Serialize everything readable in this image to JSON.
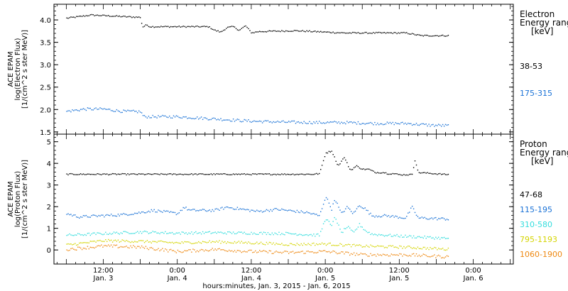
{
  "chart_data": [
    {
      "type": "scatter",
      "ylabel": [
        "ACE EPAM",
        "log(Electron Flux)",
        "[1/(cm^2 s ster MeV)]"
      ],
      "ylim": [
        1.45,
        4.35
      ],
      "yticks": [
        1.5,
        2.0,
        2.5,
        3.0,
        3.5,
        4.0
      ],
      "ytick_labels": [
        "1.5",
        "2.0",
        "2.5",
        "3.0",
        "3.5",
        "4.0"
      ],
      "legend_title": [
        "Electron",
        "Energy ranges",
        "[keV]"
      ],
      "series": [
        {
          "name": "38-53",
          "color": "#000000",
          "anchors": [
            [
              0,
              4.05
            ],
            [
              8,
              4.12
            ],
            [
              20,
              4.08
            ],
            [
              24,
              4.07
            ],
            [
              24.5,
              3.85
            ],
            [
              26,
              3.9
            ],
            [
              27,
              3.86
            ],
            [
              46,
              3.86
            ],
            [
              48,
              3.78
            ],
            [
              50,
              3.74
            ],
            [
              52,
              3.84
            ],
            [
              54,
              3.86
            ],
            [
              56,
              3.78
            ],
            [
              58,
              3.88
            ],
            [
              60,
              3.72
            ],
            [
              62,
              3.75
            ],
            [
              74,
              3.77
            ],
            [
              90,
              3.72
            ],
            [
              110,
              3.72
            ],
            [
              115,
              3.66
            ],
            [
              120,
              3.66
            ],
            [
              124,
              3.66
            ]
          ],
          "noise": 0.015
        },
        {
          "name": "175-315",
          "color": "#1a72d6",
          "anchors": [
            [
              0,
              1.97
            ],
            [
              6,
              2.02
            ],
            [
              12,
              2.02
            ],
            [
              18,
              1.97
            ],
            [
              24,
              1.96
            ],
            [
              25,
              1.85
            ],
            [
              36,
              1.85
            ],
            [
              48,
              1.8
            ],
            [
              60,
              1.75
            ],
            [
              70,
              1.73
            ],
            [
              80,
              1.72
            ],
            [
              90,
              1.72
            ],
            [
              100,
              1.7
            ],
            [
              110,
              1.7
            ],
            [
              118,
              1.66
            ],
            [
              124,
              1.65
            ]
          ],
          "noise": 0.03
        }
      ]
    },
    {
      "type": "scatter",
      "ylabel": [
        "ACE EPAM",
        "log(Proton Flux)",
        "[1/(cm^2 s ster MeV)]"
      ],
      "ylim": [
        -0.65,
        5.35
      ],
      "yticks": [
        0,
        1,
        2,
        3,
        4,
        5
      ],
      "ytick_labels": [
        "0",
        "1",
        "2",
        "3",
        "4",
        "5"
      ],
      "legend_title": [
        "Proton",
        "Energy ranges",
        "[keV]"
      ],
      "series": [
        {
          "name": "47-68",
          "color": "#000000",
          "anchors": [
            [
              0,
              3.52
            ],
            [
              80,
              3.52
            ],
            [
              82,
              3.55
            ],
            [
              84,
              4.5
            ],
            [
              86,
              4.6
            ],
            [
              88,
              3.9
            ],
            [
              90,
              4.3
            ],
            [
              92,
              3.7
            ],
            [
              94,
              3.9
            ],
            [
              96,
              3.75
            ],
            [
              98,
              3.75
            ],
            [
              100,
              3.6
            ],
            [
              103,
              3.6
            ],
            [
              104,
              3.55
            ],
            [
              106,
              3.55
            ],
            [
              108,
              3.5
            ],
            [
              110,
              3.5
            ],
            [
              112,
              3.5
            ],
            [
              113,
              4.2
            ],
            [
              114,
              3.6
            ],
            [
              124,
              3.5
            ]
          ],
          "noise": 0.03
        },
        {
          "name": "115-195",
          "color": "#1a72d6",
          "anchors": [
            [
              0,
              1.7
            ],
            [
              4,
              1.55
            ],
            [
              18,
              1.65
            ],
            [
              24,
              1.75
            ],
            [
              28,
              1.85
            ],
            [
              36,
              1.7
            ],
            [
              38,
              2.0
            ],
            [
              40,
              1.85
            ],
            [
              48,
              1.85
            ],
            [
              52,
              2.0
            ],
            [
              62,
              1.8
            ],
            [
              68,
              1.9
            ],
            [
              78,
              1.75
            ],
            [
              82,
              1.6
            ],
            [
              84,
              2.5
            ],
            [
              86,
              1.9
            ],
            [
              87,
              2.4
            ],
            [
              89,
              1.7
            ],
            [
              91,
              2.0
            ],
            [
              93,
              1.7
            ],
            [
              95,
              2.1
            ],
            [
              97,
              1.9
            ],
            [
              99,
              1.6
            ],
            [
              104,
              1.6
            ],
            [
              110,
              1.5
            ],
            [
              112,
              2.0
            ],
            [
              114,
              1.5
            ],
            [
              124,
              1.45
            ]
          ],
          "noise": 0.06
        },
        {
          "name": "310-580",
          "color": "#33dddd",
          "anchors": [
            [
              0,
              0.7
            ],
            [
              12,
              0.78
            ],
            [
              24,
              0.85
            ],
            [
              36,
              0.8
            ],
            [
              48,
              0.82
            ],
            [
              60,
              0.8
            ],
            [
              72,
              0.78
            ],
            [
              82,
              0.7
            ],
            [
              84,
              1.5
            ],
            [
              86,
              1.1
            ],
            [
              87,
              1.6
            ],
            [
              89,
              0.8
            ],
            [
              91,
              1.1
            ],
            [
              93,
              0.8
            ],
            [
              95,
              1.2
            ],
            [
              97,
              0.9
            ],
            [
              99,
              0.75
            ],
            [
              104,
              0.7
            ],
            [
              110,
              0.65
            ],
            [
              124,
              0.55
            ]
          ],
          "noise": 0.06
        },
        {
          "name": "795-1193",
          "color": "#d4d400",
          "anchors": [
            [
              0,
              0.25
            ],
            [
              12,
              0.45
            ],
            [
              24,
              0.42
            ],
            [
              36,
              0.35
            ],
            [
              48,
              0.4
            ],
            [
              60,
              0.35
            ],
            [
              72,
              0.28
            ],
            [
              84,
              0.3
            ],
            [
              96,
              0.2
            ],
            [
              110,
              0.15
            ],
            [
              124,
              0.05
            ]
          ],
          "noise": 0.06
        },
        {
          "name": "1060-1900",
          "color": "#ee8811",
          "anchors": [
            [
              0,
              0.05
            ],
            [
              12,
              0.2
            ],
            [
              24,
              0.15
            ],
            [
              36,
              -0.05
            ],
            [
              48,
              0.05
            ],
            [
              60,
              -0.05
            ],
            [
              72,
              -0.1
            ],
            [
              84,
              -0.05
            ],
            [
              96,
              -0.2
            ],
            [
              110,
              -0.2
            ],
            [
              124,
              -0.3
            ]
          ],
          "noise": 0.07
        }
      ]
    }
  ],
  "x_axis": {
    "range": [
      -4,
      145
    ],
    "major_ticks": [
      {
        "t": 12,
        "label": "12:00",
        "date": "Jan. 3"
      },
      {
        "t": 36,
        "label": "0:00",
        "date": "Jan. 4"
      },
      {
        "t": 60,
        "label": "12:00",
        "date": "Jan. 4"
      },
      {
        "t": 84,
        "label": "0:00",
        "date": "Jan. 5"
      },
      {
        "t": 108,
        "label": "12:00",
        "date": "Jan. 5"
      },
      {
        "t": 132,
        "label": "0:00",
        "date": "Jan. 6"
      }
    ],
    "title": "hours:minutes, Jan.  3, 2015 - Jan.  6, 2015"
  }
}
